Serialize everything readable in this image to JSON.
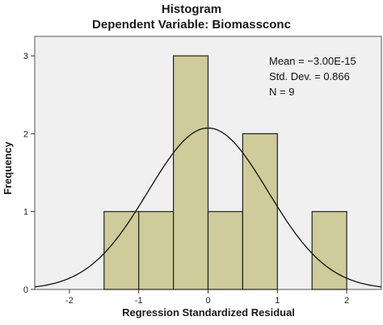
{
  "chart_data": {
    "type": "histogram",
    "title": "Histogram",
    "subtitle": "Dependent Variable: Biomassconc",
    "xlabel": "Regression Standardized Residual",
    "ylabel": "Frequency",
    "xlim": [
      -2.5,
      2.5
    ],
    "ylim": [
      0,
      3.25
    ],
    "x_ticks": [
      -2,
      -1,
      0,
      1,
      2
    ],
    "y_ticks": [
      0,
      1,
      2,
      3
    ],
    "bins": [
      {
        "from": -1.5,
        "to": -1.0,
        "count": 1
      },
      {
        "from": -1.0,
        "to": -0.5,
        "count": 1
      },
      {
        "from": -0.5,
        "to": 0.0,
        "count": 3
      },
      {
        "from": 0.0,
        "to": 0.5,
        "count": 1
      },
      {
        "from": 0.5,
        "to": 1.0,
        "count": 2
      },
      {
        "from": 1.0,
        "to": 1.5,
        "count": 0
      },
      {
        "from": 1.5,
        "to": 2.0,
        "count": 1
      }
    ],
    "normal_curve": {
      "mean": -3e-15,
      "std_dev": 0.866,
      "n": 9,
      "bin_width": 0.5
    },
    "stats": {
      "mean_label": "Mean = −3.00E-15",
      "std_label": "Std. Dev. = 0.866",
      "n_label": "N = 9"
    },
    "grid": false,
    "colors": {
      "bar_fill": "#cfcb9a",
      "bar_stroke": "#222222",
      "plot_background": "#f0f0f0",
      "curve": "#111111"
    }
  }
}
